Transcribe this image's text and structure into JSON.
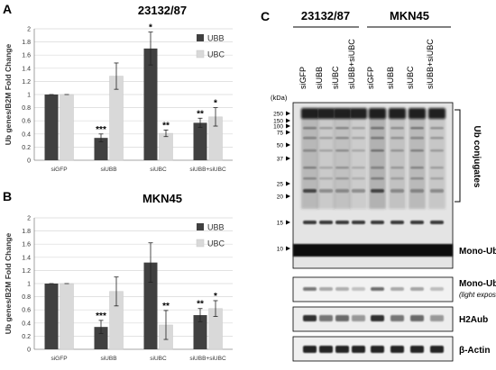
{
  "figure": {
    "panels": {
      "a": "A",
      "b": "B",
      "c": "C"
    }
  },
  "chart_data": [
    {
      "type": "bar",
      "panel": "A",
      "title": "23132/87",
      "ylabel": "Ub genes/B2M Fold Change",
      "ylim": [
        0,
        2
      ],
      "yticks": [
        "0",
        "0.2",
        "0.4",
        "0.6",
        "0.8",
        "1",
        "1.2",
        "1.4",
        "1.6",
        "1.8",
        "2"
      ],
      "categories": [
        "siGFP",
        "siUBB",
        "siUBC",
        "siUBB+siUBC"
      ],
      "series": [
        {
          "name": "UBB",
          "color": "#404040",
          "values": [
            1.0,
            0.34,
            1.7,
            0.57
          ],
          "errors": [
            0.0,
            0.06,
            0.25,
            0.07
          ],
          "sig": [
            "",
            "***",
            "*",
            "**"
          ]
        },
        {
          "name": "UBC",
          "color": "#d9d9d9",
          "values": [
            1.0,
            1.28,
            0.41,
            0.66
          ],
          "errors": [
            0.0,
            0.2,
            0.05,
            0.14
          ],
          "sig": [
            "",
            "",
            "**",
            "*"
          ]
        }
      ],
      "legend": "top-right",
      "grid": true
    },
    {
      "type": "bar",
      "panel": "B",
      "title": "MKN45",
      "ylabel": "Ub genes/B2M Fold Change",
      "ylim": [
        0,
        2
      ],
      "yticks": [
        "0",
        "0.2",
        "0.4",
        "0.6",
        "0.8",
        "1",
        "1.2",
        "1.4",
        "1.6",
        "1.8",
        "2"
      ],
      "categories": [
        "siGFP",
        "siUBB",
        "siUBC",
        "siUBB+siUBC"
      ],
      "series": [
        {
          "name": "UBB",
          "color": "#404040",
          "values": [
            1.0,
            0.34,
            1.32,
            0.52
          ],
          "errors": [
            0.0,
            0.1,
            0.3,
            0.1
          ],
          "sig": [
            "",
            "***",
            "",
            "**"
          ]
        },
        {
          "name": "UBC",
          "color": "#d9d9d9",
          "values": [
            1.0,
            0.88,
            0.37,
            0.62
          ],
          "errors": [
            0.0,
            0.22,
            0.22,
            0.12
          ],
          "sig": [
            "",
            "",
            "**",
            "*"
          ]
        }
      ],
      "legend": "top-right",
      "grid": true
    }
  ],
  "blot": {
    "groups": [
      "23132/87",
      "MKN45"
    ],
    "lanes": [
      "siGFP",
      "siUBB",
      "siUBC",
      "siUBB+siUBC",
      "siGFP",
      "siUBB",
      "siUBC",
      "siUBB+siUBC"
    ],
    "kda_unit": "(kDa)",
    "markers": [
      "250",
      "150",
      "100",
      "75",
      "50",
      "37",
      "25",
      "20",
      "15",
      "10"
    ],
    "bracket_label": "Ub conjugates",
    "main_label": "Mono-Ub",
    "light_label": "Mono-Ub",
    "light_sublabel": "(light exposure)",
    "h2a_label": "H2Aub",
    "actin_label": "β-Actin"
  }
}
